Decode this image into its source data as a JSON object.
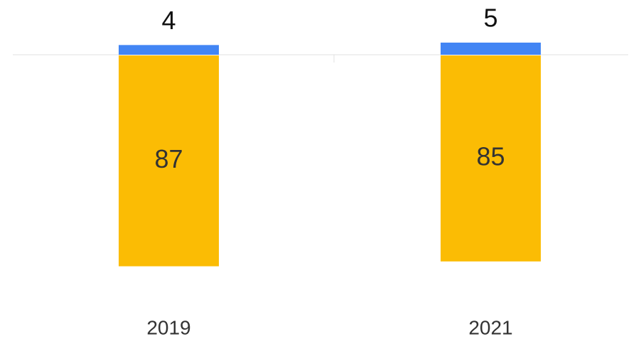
{
  "chart_data": {
    "type": "bar",
    "categories": [
      "2019",
      "2021"
    ],
    "series": [
      {
        "color": "#fbbc04",
        "values": [
          87,
          85
        ]
      },
      {
        "color": "#4285f4",
        "values": [
          4,
          5
        ]
      }
    ]
  }
}
